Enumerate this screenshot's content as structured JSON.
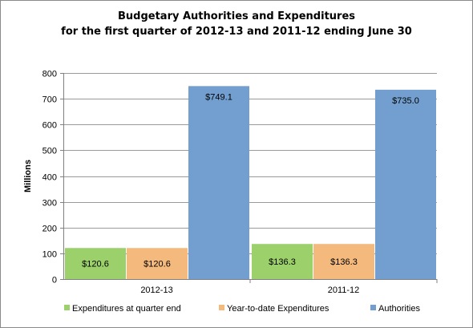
{
  "chart_data": {
    "type": "bar",
    "title": "Budgetary Authorities and Expenditures",
    "subtitle": "for the first quarter of 2012-13 and 2011-12 ending June 30",
    "ylabel": "Millions",
    "xlabel": "",
    "categories": [
      "2012-13",
      "2011-12"
    ],
    "ylim": [
      0,
      800
    ],
    "yticks": [
      0,
      100,
      200,
      300,
      400,
      500,
      600,
      700,
      800
    ],
    "grid": true,
    "legend_position": "bottom",
    "series": [
      {
        "name": "Expenditures at quarter end",
        "color": "#9bd06a",
        "values": [
          120.6,
          136.3
        ],
        "labels": [
          "$120.6",
          "$136.3"
        ]
      },
      {
        "name": "Year-to-date Expenditures",
        "color": "#f4b97c",
        "values": [
          120.6,
          136.3
        ],
        "labels": [
          "$120.6",
          "$136.3"
        ]
      },
      {
        "name": "Authorities",
        "color": "#729fcf",
        "values": [
          749.1,
          735.0
        ],
        "labels": [
          "$749.1",
          "$735.0"
        ]
      }
    ]
  }
}
